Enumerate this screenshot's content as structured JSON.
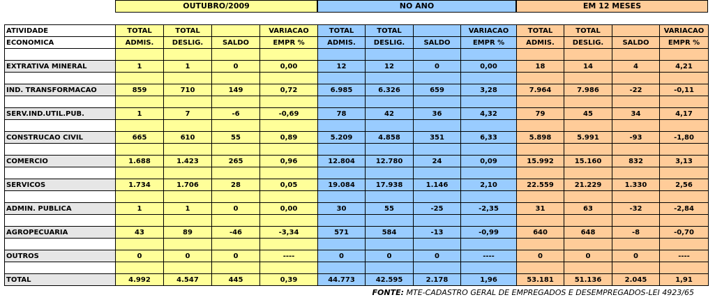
{
  "groups": [
    "OUTUBRO/2009",
    "NO ANO",
    "EM 12 MESES"
  ],
  "columns": [
    {
      "line1": "ATIVIDADE",
      "line2": "ECONOMICA"
    },
    {
      "line1": "TOTAL",
      "line2": "ADMIS."
    },
    {
      "line1": "TOTAL",
      "line2": "DESLIG."
    },
    {
      "line2": "SALDO"
    },
    {
      "line1": "VARIACAO",
      "line2": "EMPR %"
    },
    {
      "line1": "TOTAL",
      "line2": "ADMIS."
    },
    {
      "line1": "TOTAL",
      "line2": "DESLIG."
    },
    {
      "line2": "SALDO"
    },
    {
      "line1": "VARIACAO",
      "line2": "EMPR %"
    },
    {
      "line1": "TOTAL",
      "line2": "ADMIS."
    },
    {
      "line1": "TOTAL",
      "line2": "DESLIG."
    },
    {
      "line2": "SALDO"
    },
    {
      "line1": "VARIACAO",
      "line2": "EMPR %"
    }
  ],
  "rows": [
    {
      "label": "EXTRATIVA MINERAL",
      "values": [
        "1",
        "1",
        "0",
        "0,00",
        "12",
        "12",
        "0",
        "0,00",
        "18",
        "14",
        "4",
        "4,21"
      ]
    },
    {
      "label": "IND. TRANSFORMACAO",
      "values": [
        "859",
        "710",
        "149",
        "0,72",
        "6.985",
        "6.326",
        "659",
        "3,28",
        "7.964",
        "7.986",
        "-22",
        "-0,11"
      ]
    },
    {
      "label": "SERV.IND.UTIL.PUB.",
      "values": [
        "1",
        "7",
        "-6",
        "-0,69",
        "78",
        "42",
        "36",
        "4,32",
        "79",
        "45",
        "34",
        "4,17"
      ]
    },
    {
      "label": "CONSTRUCAO CIVIL",
      "values": [
        "665",
        "610",
        "55",
        "0,89",
        "5.209",
        "4.858",
        "351",
        "6,33",
        "5.898",
        "5.991",
        "-93",
        "-1,80"
      ]
    },
    {
      "label": "COMERCIO",
      "values": [
        "1.688",
        "1.423",
        "265",
        "0,96",
        "12.804",
        "12.780",
        "24",
        "0,09",
        "15.992",
        "15.160",
        "832",
        "3,13"
      ]
    },
    {
      "label": "SERVICOS",
      "values": [
        "1.734",
        "1.706",
        "28",
        "0,05",
        "19.084",
        "17.938",
        "1.146",
        "2,10",
        "22.559",
        "21.229",
        "1.330",
        "2,56"
      ]
    },
    {
      "label": "ADMIN. PUBLICA",
      "values": [
        "1",
        "1",
        "0",
        "0,00",
        "30",
        "55",
        "-25",
        "-2,35",
        "31",
        "63",
        "-32",
        "-2,84"
      ]
    },
    {
      "label": "AGROPECUARIA",
      "values": [
        "43",
        "89",
        "-46",
        "-3,34",
        "571",
        "584",
        "-13",
        "-0,99",
        "640",
        "648",
        "-8",
        "-0,70"
      ]
    },
    {
      "label": "OUTROS",
      "values": [
        "0",
        "0",
        "0",
        "----",
        "0",
        "0",
        "0",
        "----",
        "0",
        "0",
        "0",
        "----"
      ]
    },
    {
      "label": "TOTAL",
      "values": [
        "4.992",
        "4.547",
        "445",
        "0,39",
        "44.773",
        "42.595",
        "2.178",
        "1,96",
        "53.181",
        "51.136",
        "2.045",
        "1,91"
      ]
    }
  ],
  "footer": {
    "label": "FONTE:",
    "text": "MTE-CADASTRO GERAL DE EMPREGADOS E DESEMPREGADOS-LEI 4923/65"
  }
}
